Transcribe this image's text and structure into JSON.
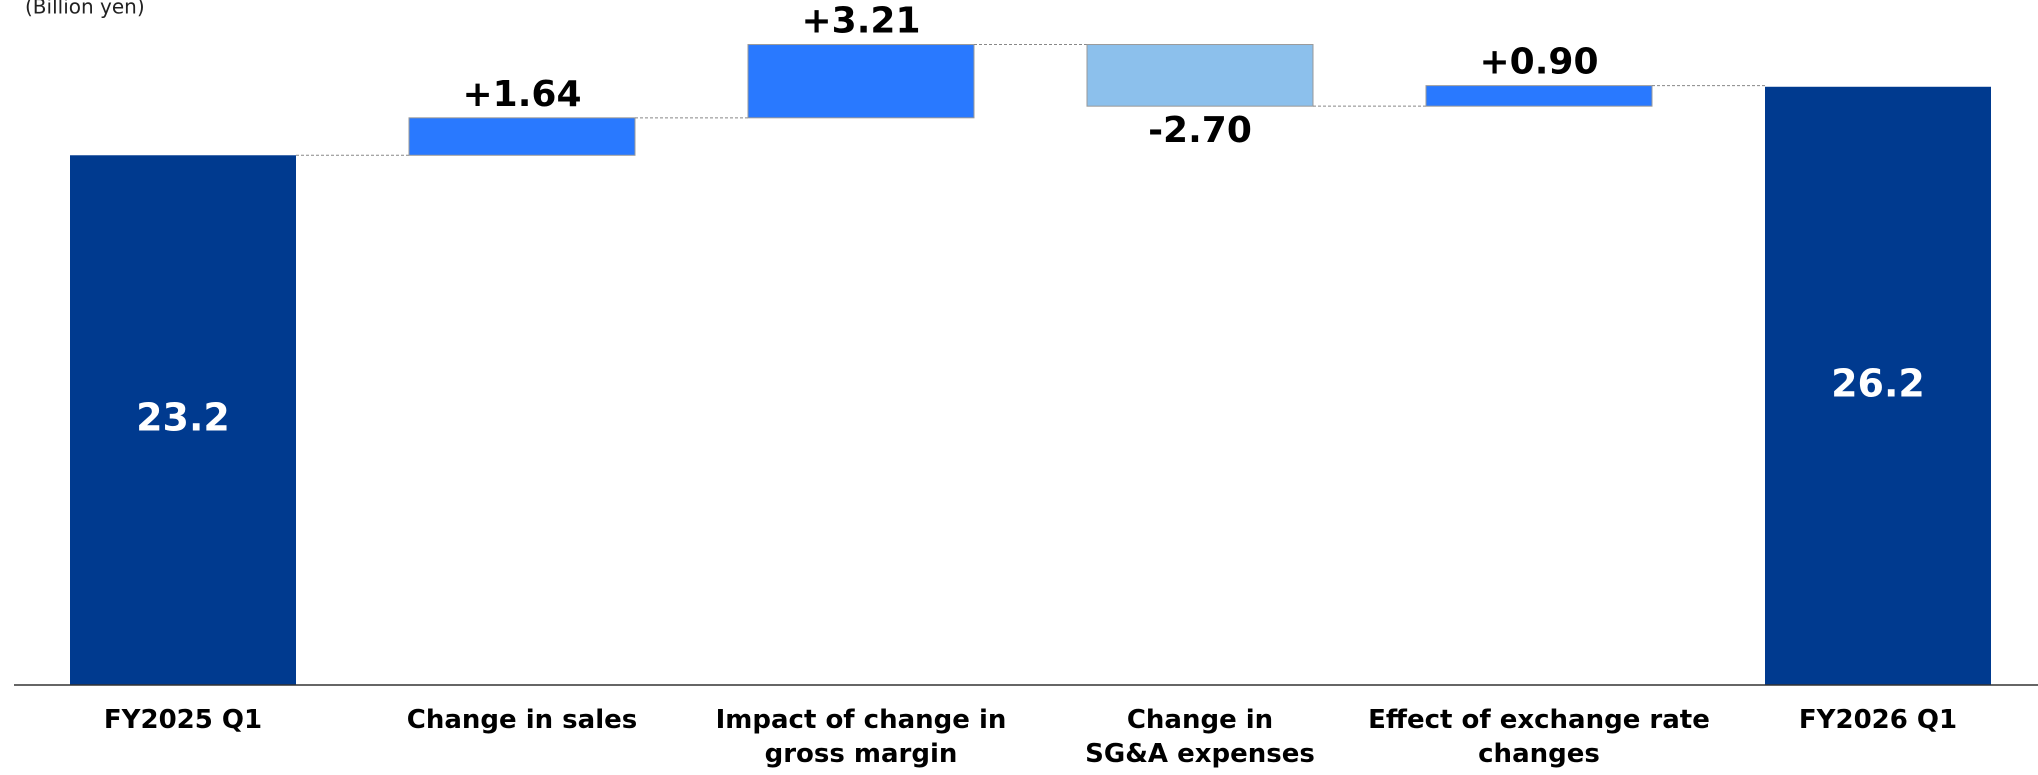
{
  "chart_data": {
    "type": "waterfall",
    "unit_label": "(Billion yen)",
    "categories": [
      [
        "FY2025 Q1"
      ],
      [
        "Change in sales"
      ],
      [
        "Impact of change in",
        "gross margin"
      ],
      [
        "Change in",
        "SG&A expenses"
      ],
      [
        "Effect of exchange rate",
        "changes"
      ],
      [
        "FY2026 Q1"
      ]
    ],
    "measure": [
      "absolute",
      "relative",
      "relative",
      "relative",
      "relative",
      "absolute"
    ],
    "values": [
      23.2,
      1.64,
      3.21,
      -2.7,
      0.9,
      26.2
    ],
    "value_labels": [
      "23.2",
      "+1.64",
      "+3.21",
      "-2.70",
      "+0.90",
      "26.2"
    ],
    "colors": {
      "absolute": "#003a8f",
      "increase": "#2979ff",
      "decrease": "#8cc0ec"
    },
    "ylim": [
      0,
      30
    ]
  }
}
